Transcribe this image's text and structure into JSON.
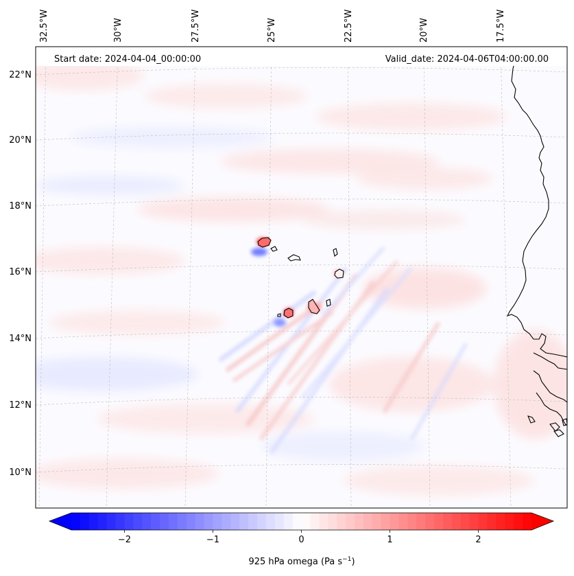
{
  "map": {
    "start_date": "Start date: 2024-04-04_00:00:00",
    "valid_date": "Valid_date: 2024-04-06T04:00:00.00",
    "lon_labels": [
      "32.5°W",
      "30°W",
      "27.5°W",
      "25°W",
      "22.5°W",
      "20°W",
      "17.5°W"
    ],
    "lat_labels": [
      "22°N",
      "20°N",
      "18°N",
      "16°N",
      "14°N",
      "12°N",
      "10°N"
    ]
  },
  "colorbar": {
    "label": "925 hPa omega (Pa s",
    "label_sup": "−1",
    "label_end": ")",
    "ticks": [
      "−2",
      "−1",
      "0",
      "1",
      "2"
    ],
    "tick_values": [
      -2,
      -1,
      0,
      1,
      2
    ],
    "min": -2.6,
    "max": 2.6
  },
  "colors": {
    "negative": "#0000ff",
    "neutral": "#ffffff",
    "positive": "#ff0000",
    "coast": "#000000",
    "grid": "#bbbbbb"
  }
}
